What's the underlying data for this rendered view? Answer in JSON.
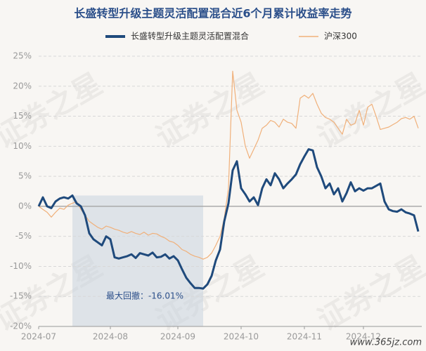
{
  "chart_data": {
    "type": "line",
    "title": "长盛转型升级主题灵活配置混合近6个月累计收益率走势",
    "annotation": "最大回撤：-16.01%",
    "watermark": "证券之星",
    "site": "www.365jz.com",
    "categories": [
      "2024-07",
      null,
      null,
      null,
      null,
      null,
      null,
      null,
      null,
      null,
      null,
      null,
      null,
      null,
      null,
      null,
      null,
      "2024-08",
      null,
      null,
      null,
      null,
      null,
      null,
      null,
      null,
      null,
      null,
      null,
      null,
      null,
      null,
      null,
      "2024-09",
      null,
      null,
      null,
      null,
      null,
      null,
      null,
      null,
      null,
      null,
      null,
      null,
      null,
      null,
      "2024-10",
      null,
      null,
      null,
      null,
      null,
      null,
      null,
      null,
      null,
      null,
      null,
      null,
      null,
      null,
      "2024-11",
      null,
      null,
      null,
      null,
      null,
      null,
      null,
      null,
      null,
      null,
      null,
      null,
      null,
      "2024-12",
      null,
      null,
      null,
      null,
      null,
      null,
      null,
      null,
      null,
      null,
      null,
      null,
      null
    ],
    "series": [
      {
        "name": "长盛转型升级主题灵活配置混合",
        "color": "#1f4a7c",
        "values": [
          0,
          1.5,
          0,
          -0.3,
          0.8,
          1.3,
          1.5,
          1.3,
          1.8,
          0.5,
          0,
          -1.5,
          -4.5,
          -5.5,
          -6,
          -6.5,
          -5,
          -5.5,
          -8.5,
          -8.7,
          -8.5,
          -8.3,
          -8,
          -8.6,
          -7.8,
          -8,
          -8.2,
          -7.7,
          -8.5,
          -8.4,
          -8,
          -8.7,
          -8.3,
          -9,
          -10.5,
          -11.9,
          -12.8,
          -13.6,
          -13.6,
          -13.7,
          -13,
          -11.6,
          -9,
          -7.2,
          -2.5,
          0.5,
          6,
          7.5,
          3,
          2,
          0.8,
          1.5,
          0.2,
          3,
          4.5,
          3.5,
          5.5,
          4.5,
          3,
          3.8,
          4.5,
          5.3,
          7,
          8.3,
          9.5,
          9.3,
          6.5,
          5,
          3,
          3.8,
          2,
          3,
          0.8,
          2.2,
          4,
          2.5,
          3,
          2.6,
          3,
          3,
          3.4,
          3.8,
          0.8,
          -0.5,
          -0.8,
          -0.9,
          -0.5,
          -1,
          -1.2,
          -1.5,
          -4.2
        ]
      },
      {
        "name": "沪深300",
        "color": "#f0b07a",
        "values": [
          0,
          -0.5,
          -1,
          -1.8,
          -1,
          -0.3,
          -0.5,
          0.2,
          0.5,
          0.8,
          -0.5,
          -1.5,
          -2.5,
          -3,
          -3.5,
          -3.8,
          -3.3,
          -3.5,
          -3.8,
          -4,
          -4.3,
          -4.5,
          -4.2,
          -4.5,
          -4.7,
          -4.3,
          -4.8,
          -4.5,
          -4.6,
          -5,
          -5.3,
          -5.8,
          -6,
          -6.5,
          -7.2,
          -7.5,
          -8,
          -8.3,
          -8.5,
          -8.8,
          -8.5,
          -7.8,
          -6.5,
          -5,
          -2,
          3,
          22.5,
          16,
          14,
          10,
          8,
          9.5,
          11,
          13,
          13.5,
          14.3,
          14,
          13.2,
          14.5,
          14,
          13.8,
          13,
          18,
          18.5,
          18,
          18.8,
          17,
          15.5,
          14.8,
          14.5,
          14,
          13,
          12,
          14.5,
          13.5,
          13.8,
          16,
          13.5,
          16.5,
          17,
          15,
          12.8,
          13,
          13.2,
          13.6,
          14,
          14.6,
          14.8,
          14.5,
          15,
          13
        ]
      }
    ],
    "ylim": [
      -20,
      25
    ],
    "yticks": [
      {
        "value": -20,
        "label": "-20%"
      },
      {
        "value": -15,
        "label": "-15%"
      },
      {
        "value": -10,
        "label": "-10%"
      },
      {
        "value": -5,
        "label": "-5%"
      },
      {
        "value": 0,
        "label": "0%"
      },
      {
        "value": 5,
        "label": "5%"
      },
      {
        "value": 10,
        "label": "10%"
      },
      {
        "value": 15,
        "label": "15%"
      },
      {
        "value": 20,
        "label": "20%"
      },
      {
        "value": 25,
        "label": "25%"
      }
    ],
    "grid": true,
    "legend": "top"
  }
}
